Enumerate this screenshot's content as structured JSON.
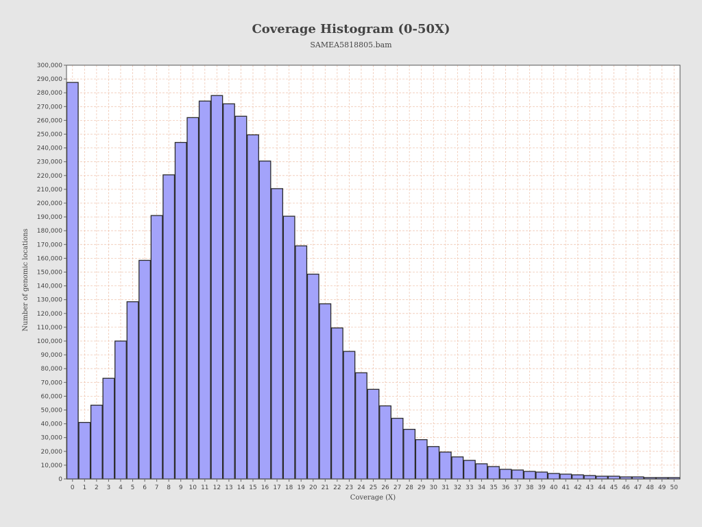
{
  "chart_data": {
    "type": "bar",
    "title": "Coverage Histogram (0-50X)",
    "subtitle": "SAMEA5818805.bam",
    "xlabel": "Coverage (X)",
    "ylabel": "Number of genomic locations",
    "ylim": [
      0,
      300000
    ],
    "y_tick_step": 10000,
    "grid": true,
    "categories": [
      "0",
      "1",
      "2",
      "3",
      "4",
      "5",
      "6",
      "7",
      "8",
      "9",
      "10",
      "11",
      "12",
      "13",
      "14",
      "15",
      "16",
      "17",
      "18",
      "19",
      "20",
      "21",
      "22",
      "23",
      "24",
      "25",
      "26",
      "27",
      "28",
      "29",
      "30",
      "31",
      "32",
      "33",
      "34",
      "35",
      "36",
      "37",
      "38",
      "39",
      "40",
      "41",
      "42",
      "43",
      "44",
      "45",
      "46",
      "47",
      "48",
      "49",
      "50"
    ],
    "values": [
      287500,
      41000,
      53500,
      73000,
      100000,
      128500,
      158500,
      191000,
      220500,
      244000,
      262000,
      274000,
      278000,
      272000,
      263000,
      249500,
      230500,
      210500,
      190500,
      169000,
      148500,
      127000,
      109500,
      92500,
      77000,
      65000,
      53000,
      44000,
      36000,
      28500,
      23500,
      19500,
      16000,
      13500,
      11000,
      9000,
      7000,
      6500,
      5500,
      5000,
      4000,
      3500,
      3000,
      2500,
      2000,
      2000,
      1500,
      1500,
      1000,
      1000,
      1000
    ],
    "colors": {
      "bar_fill": "#a3a3fa",
      "bar_stroke": "#2b2b2b",
      "grid": "#f0c8b4",
      "plot_bg": "#ffffff",
      "page_bg": "#e6e6e6",
      "text": "#444444"
    }
  }
}
